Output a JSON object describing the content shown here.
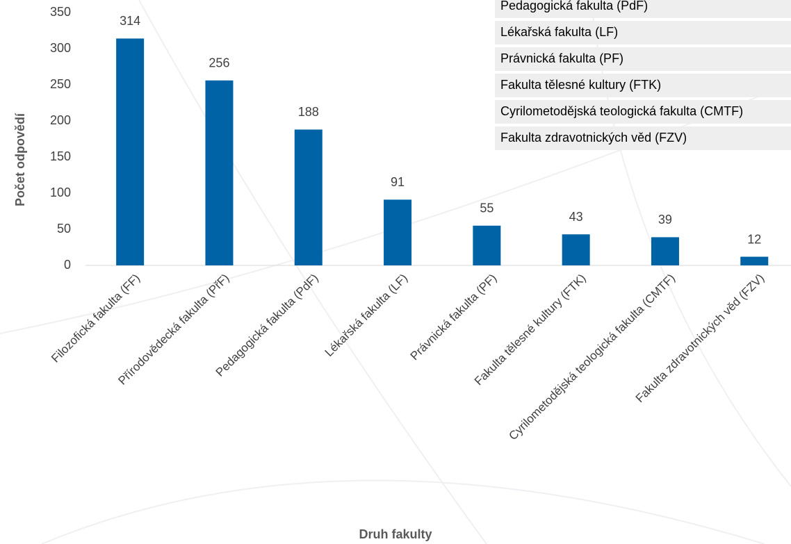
{
  "chart_data": {
    "type": "bar",
    "x_label": "Druh fakulty",
    "y_label": "Počet odpovědí",
    "categories": [
      "Filozofická fakulta (FF)",
      "Přírodovědecká fakulta (PřF)",
      "Pedagogická fakulta (PdF)",
      "Lékařská fakulta (LF)",
      "Právnická fakulta (PF)",
      "Fakulta tělesné kultury (FTK)",
      "Cyrilometodějská teologická fakulta (CMTF)",
      "Fakulta zdravotnických věd (FZV)"
    ],
    "values": [
      314,
      256,
      188,
      91,
      55,
      43,
      39,
      12
    ],
    "color": "#0063a6",
    "ylim": [
      0,
      350
    ],
    "yticks": [
      0,
      50,
      100,
      150,
      200,
      250,
      300,
      350
    ],
    "grid": false
  }
}
